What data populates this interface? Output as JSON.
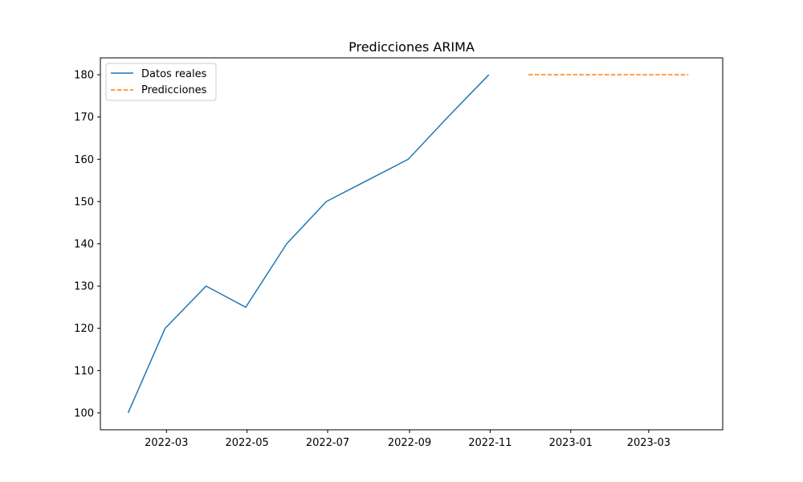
{
  "chart_data": {
    "type": "line",
    "title": "Predicciones ARIMA",
    "xlabel": "",
    "ylabel": "",
    "x_axis": {
      "type": "date",
      "range": [
        "2022-01-10",
        "2023-04-26"
      ],
      "ticks": [
        "2022-03-01",
        "2022-05-01",
        "2022-07-01",
        "2022-09-01",
        "2022-11-01",
        "2023-01-01",
        "2023-03-01"
      ],
      "tick_labels": [
        "2022-03",
        "2022-05",
        "2022-07",
        "2022-09",
        "2022-11",
        "2023-01",
        "2023-03"
      ]
    },
    "y_axis": {
      "range": [
        96,
        184
      ],
      "ticks": [
        100,
        110,
        120,
        130,
        140,
        150,
        160,
        170,
        180
      ]
    },
    "grid": false,
    "legend_position": "top-left",
    "series": [
      {
        "name": "Datos reales",
        "style": "solid",
        "color": "#1f77b4",
        "x": [
          "2022-01-31",
          "2022-02-28",
          "2022-03-31",
          "2022-04-30",
          "2022-05-31",
          "2022-06-30",
          "2022-07-31",
          "2022-08-31",
          "2022-09-30",
          "2022-10-31"
        ],
        "y": [
          100,
          120,
          130,
          125,
          140,
          150,
          155,
          160,
          170,
          180
        ]
      },
      {
        "name": "Predicciones",
        "style": "dashed",
        "color": "#ff7f0e",
        "x": [
          "2022-11-30",
          "2022-12-31",
          "2023-01-31",
          "2023-02-28",
          "2023-03-31"
        ],
        "y": [
          180,
          180,
          180,
          180,
          180
        ]
      }
    ]
  }
}
